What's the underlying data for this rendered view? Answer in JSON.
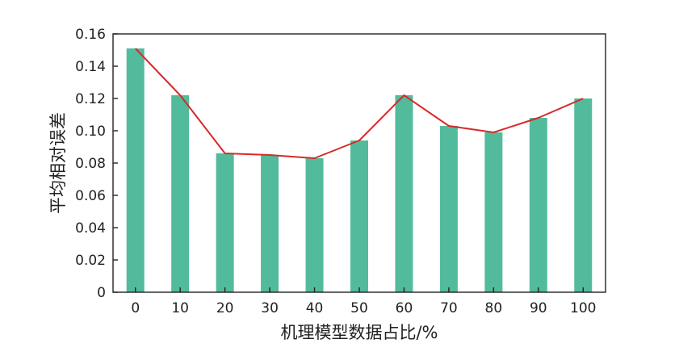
{
  "chart_data": {
    "type": "bar",
    "title": "",
    "xlabel": "机理模型数据占比/%",
    "ylabel": "平均相对误差",
    "categories": [
      "0",
      "10",
      "20",
      "30",
      "40",
      "50",
      "60",
      "70",
      "80",
      "90",
      "100"
    ],
    "series": [
      {
        "type": "bar",
        "values": [
          0.151,
          0.122,
          0.086,
          0.085,
          0.083,
          0.094,
          0.122,
          0.103,
          0.099,
          0.108,
          0.12
        ]
      },
      {
        "type": "line",
        "values": [
          0.151,
          0.122,
          0.086,
          0.085,
          0.083,
          0.094,
          0.122,
          0.103,
          0.099,
          0.108,
          0.12
        ]
      }
    ],
    "ylim": [
      0,
      0.16
    ],
    "yticks": [
      "0",
      "0.02",
      "0.04",
      "0.06",
      "0.08",
      "0.10",
      "0.12",
      "0.14",
      "0.16"
    ],
    "grid": false,
    "legend": "none",
    "colors": {
      "bar": "#52bb9c",
      "line": "#d72a2a",
      "axis": "#222222"
    }
  }
}
